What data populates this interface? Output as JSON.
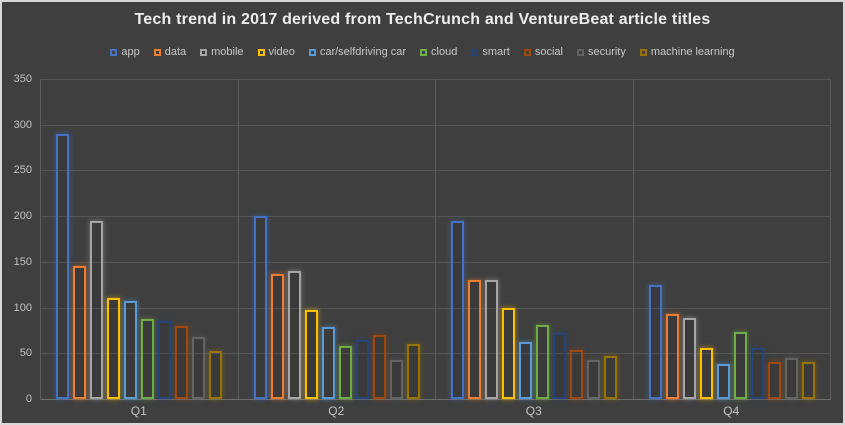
{
  "chart_data": {
    "type": "bar",
    "title": "Tech trend in 2017 derived from TechCrunch and VentureBeat article titles",
    "categories": [
      "Q1",
      "Q2",
      "Q3",
      "Q4"
    ],
    "series": [
      {
        "name": "app",
        "color": "#4472C4",
        "values": [
          290,
          200,
          195,
          125
        ]
      },
      {
        "name": "data",
        "color": "#ED7D31",
        "values": [
          146,
          137,
          130,
          93
        ]
      },
      {
        "name": "mobile",
        "color": "#A5A5A5",
        "values": [
          195,
          140,
          130,
          89
        ]
      },
      {
        "name": "video",
        "color": "#FFC000",
        "values": [
          110,
          97,
          100,
          56
        ]
      },
      {
        "name": "car/selfdriving car",
        "color": "#5B9BD5",
        "values": [
          107,
          79,
          62,
          38
        ]
      },
      {
        "name": "cloud",
        "color": "#70AD47",
        "values": [
          88,
          58,
          81,
          73
        ]
      },
      {
        "name": "smart",
        "color": "#264478",
        "values": [
          85,
          65,
          72,
          56
        ]
      },
      {
        "name": "social",
        "color": "#9E480E",
        "values": [
          80,
          70,
          54,
          41
        ]
      },
      {
        "name": "security",
        "color": "#636363",
        "values": [
          68,
          43,
          43,
          45
        ]
      },
      {
        "name": "machine learning",
        "color": "#997300",
        "values": [
          52,
          60,
          47,
          41
        ]
      }
    ],
    "xlabel": "",
    "ylabel": "",
    "ylim": [
      0,
      350
    ],
    "yticks": [
      0,
      50,
      100,
      150,
      200,
      250,
      300,
      350
    ],
    "grid": true,
    "legend_position": "top",
    "background_color": "#3F3F3F",
    "gridline_color": "#545454",
    "text_color": "#C9C9C9"
  }
}
